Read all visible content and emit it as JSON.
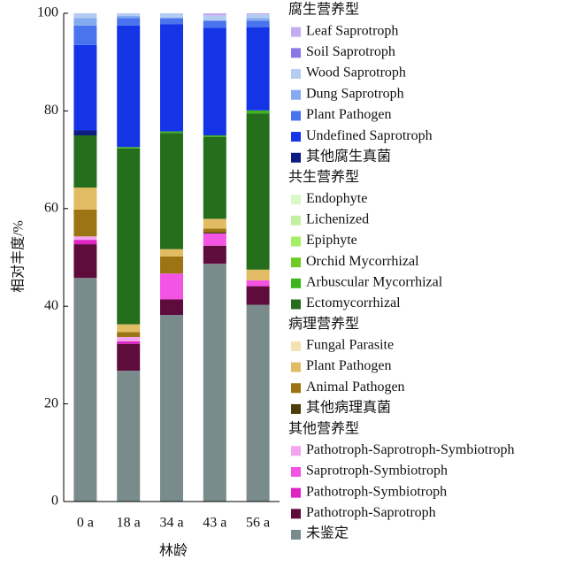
{
  "chart_data": {
    "type": "stacked-bar",
    "y_label": "相对丰度/%",
    "x_label": "林龄",
    "categories": [
      "0 a",
      "18 a",
      "34 a",
      "43 a",
      "56 a"
    ],
    "ylim": [
      0,
      100
    ],
    "yticks": [
      0,
      20,
      40,
      60,
      80,
      100
    ],
    "groups": [
      {
        "title": "腐生营养型",
        "series": [
          {
            "name": "Leaf Saprotroph",
            "color": "#c4acf0",
            "values": [
              0,
              0,
              0,
              0.5,
              0.2
            ]
          },
          {
            "name": "Soil Saprotroph",
            "color": "#8a78e4",
            "values": [
              0,
              0,
              0,
              0,
              0
            ]
          },
          {
            "name": "Wood Saprotroph",
            "color": "#b4ccf2",
            "values": [
              1,
              0.5,
              1,
              1,
              0.8
            ]
          },
          {
            "name": "Dung Saprotroph",
            "color": "#84aaf0",
            "values": [
              1.5,
              0.5,
              0,
              0,
              0.5
            ]
          },
          {
            "name": "Plant Pathogen",
            "color": "#4a74ee",
            "values": [
              4,
              1.5,
              1.2,
              1.5,
              1.4
            ]
          },
          {
            "name": "Undefined Saprotroph",
            "color": "#1434e6",
            "values": [
              17.5,
              24.9,
              22,
              22,
              17
            ]
          },
          {
            "name": "其他腐生真菌",
            "color": "#0c1c80",
            "values": [
              1,
              0,
              0,
              0,
              0
            ]
          }
        ]
      },
      {
        "title": "共生营养型",
        "series": [
          {
            "name": "Endophyte",
            "color": "#daf8c4",
            "values": [
              0,
              0,
              0,
              0,
              0
            ]
          },
          {
            "name": "Lichenized",
            "color": "#c4f0a4",
            "values": [
              0,
              0,
              0,
              0,
              0
            ]
          },
          {
            "name": "Epiphyte",
            "color": "#a4f064",
            "values": [
              0,
              0,
              0,
              0,
              0
            ]
          },
          {
            "name": "Orchid Mycorrhizal",
            "color": "#6ccc24",
            "values": [
              0,
              0,
              0,
              0,
              0
            ]
          },
          {
            "name": "Arbuscular Mycorrhizal",
            "color": "#3eb41c",
            "values": [
              0,
              0.3,
              0.3,
              0.3,
              0.6
            ]
          },
          {
            "name": "Ectomycorrhizal",
            "color": "#246e1c",
            "values": [
              10.7,
              36,
              23.8,
              16.8,
              32
            ]
          }
        ]
      },
      {
        "title": "病理营养型",
        "series": [
          {
            "name": "Fungal Parasite",
            "color": "#f2e2b4",
            "values": [
              0,
              0,
              0,
              0,
              0
            ]
          },
          {
            "name": "Plant Pathogen",
            "color": "#e2bc64",
            "values": [
              4.5,
              1.6,
              1.5,
              2,
              2.2
            ]
          },
          {
            "name": "Animal Pathogen",
            "color": "#9c7414",
            "values": [
              5.5,
              1,
              3.5,
              0.7,
              0
            ]
          },
          {
            "name": "其他病理真菌",
            "color": "#4c3c0c",
            "values": [
              0,
              0,
              0,
              0.3,
              0
            ]
          }
        ]
      },
      {
        "title": "其他营养型",
        "series": [
          {
            "name": "Pathotroph-Saprotroph-Symbiotroph",
            "color": "#f4a4f0",
            "values": [
              0.7,
              0.9,
              0,
              0,
              0
            ]
          },
          {
            "name": "Saprotroph-Symbiotroph",
            "color": "#f454e4",
            "values": [
              0,
              0,
              5.3,
              2.5,
              1.2
            ]
          },
          {
            "name": "Pathotroph-Symbiotroph",
            "color": "#e024c4",
            "values": [
              0.9,
              0.5,
              0,
              0,
              0
            ]
          },
          {
            "name": "Pathotroph-Saprotroph",
            "color": "#5e0c3c",
            "values": [
              6.9,
              5.5,
              3.2,
              3.7,
              3.8
            ]
          },
          {
            "name": "未鉴定",
            "color": "#7a8b8c",
            "values": [
              45.8,
              26.8,
              38.2,
              48.7,
              40.3
            ]
          }
        ]
      }
    ]
  }
}
